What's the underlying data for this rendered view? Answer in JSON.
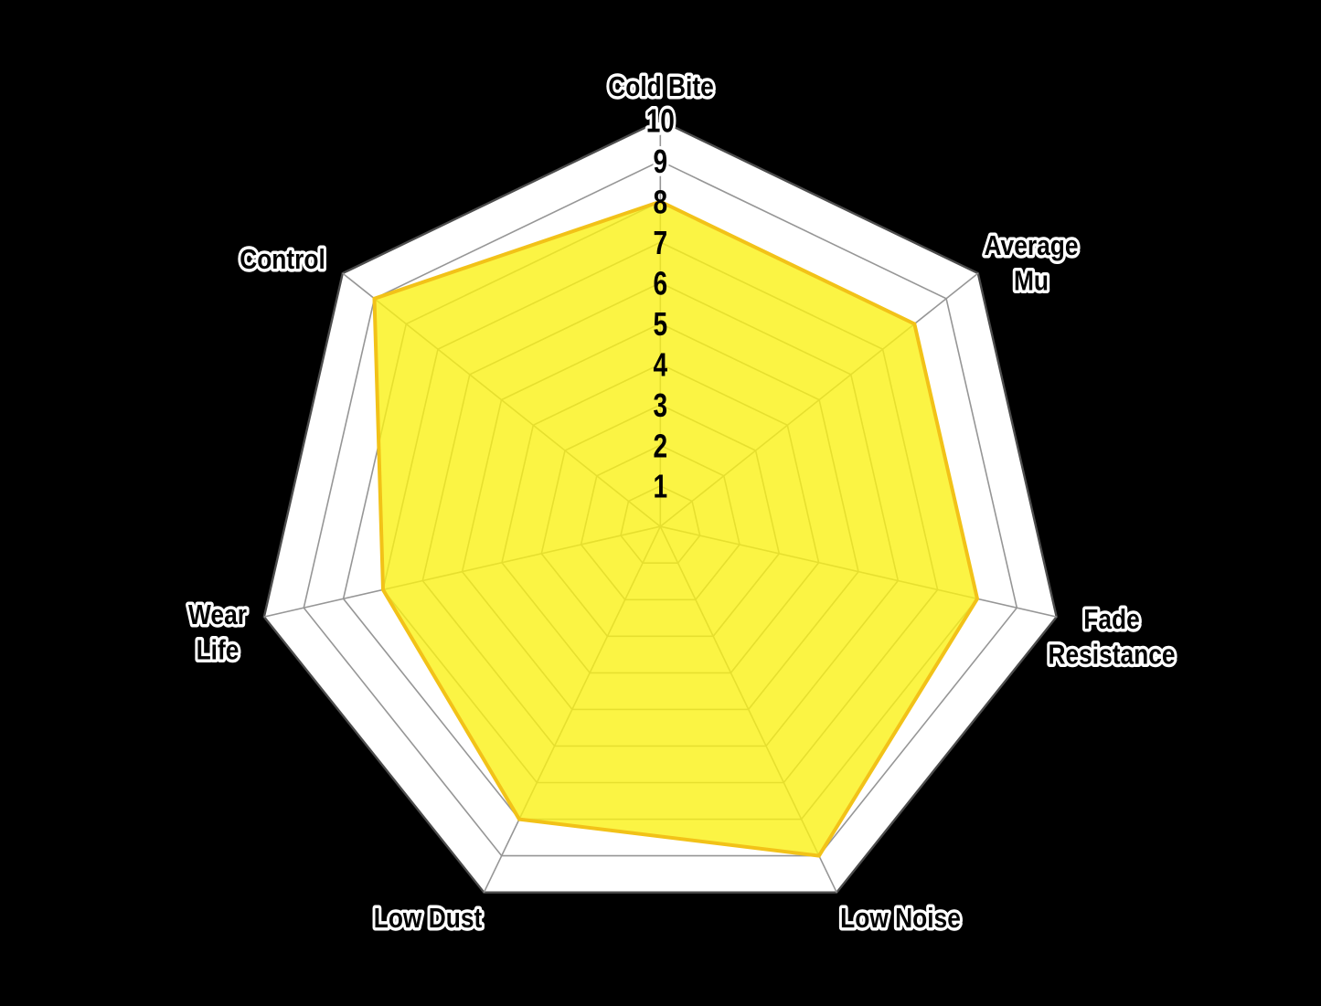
{
  "chart_data": {
    "type": "radar",
    "num_axes": 7,
    "categories": [
      "Cold Bite",
      "Average Mu",
      "Fade Resistance",
      "Low Noise",
      "Low Dust",
      "Wear Life",
      "Control"
    ],
    "values": [
      8,
      8,
      8,
      9,
      8,
      7,
      9
    ],
    "axis_labels_lines": [
      [
        "Cold Bite"
      ],
      [
        "Average",
        "Mu"
      ],
      [
        "Fade",
        "Resistance"
      ],
      [
        "Low Noise"
      ],
      [
        "Low Dust"
      ],
      [
        "Wear",
        "Life"
      ],
      [
        "Control"
      ]
    ],
    "tick_labels": [
      "1",
      "2",
      "3",
      "4",
      "5",
      "6",
      "7",
      "8",
      "9",
      "10"
    ],
    "scale_min": 0,
    "scale_max": 10,
    "grid_shape": "heptagon",
    "grid": "concentric heptagon rings at each integer with radial spokes",
    "legend": "none",
    "colors": {
      "fill": "#FAF115",
      "fill_opacity": 0.8,
      "stroke": "#F2C218",
      "grid": "#969696",
      "outer_ring": "#4d4d4d",
      "plot_background": "#FFFFFF",
      "page_background": "#000000",
      "text": "#000000",
      "text_halo": "#FFFFFF"
    }
  }
}
